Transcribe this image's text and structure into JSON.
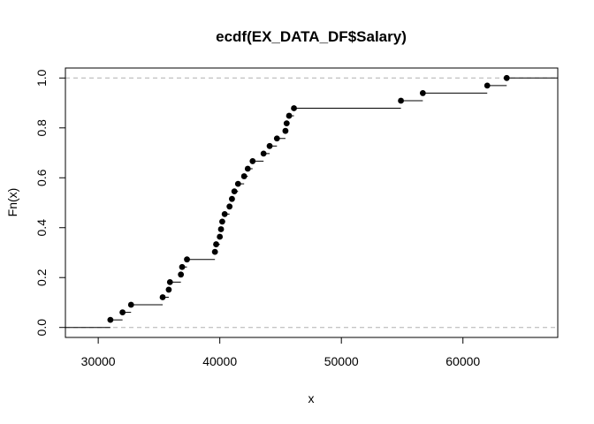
{
  "chart_data": {
    "type": "scatter",
    "subtype": "ecdf-step",
    "title": "ecdf(EX_DATA_DF$Salary)",
    "xlabel": "x",
    "ylabel": "Fn(x)",
    "xlim": [
      27300,
      67800
    ],
    "ylim": [
      -0.04,
      1.04
    ],
    "x_ticks": [
      30000,
      40000,
      50000,
      60000
    ],
    "x_tick_labels": [
      "30000",
      "40000",
      "50000",
      "60000"
    ],
    "y_ticks": [
      0.0,
      0.2,
      0.4,
      0.6,
      0.8,
      1.0
    ],
    "y_tick_labels": [
      "0.0",
      "0.2",
      "0.4",
      "0.6",
      "0.8",
      "1.0"
    ],
    "reference_lines_y": [
      0,
      1
    ],
    "reference_line_style": "dashed grey",
    "point_color": "#000000",
    "x": [
      31000,
      32000,
      32700,
      35300,
      35800,
      35900,
      36800,
      36900,
      37300,
      39600,
      39700,
      40000,
      40100,
      40200,
      40400,
      40800,
      41000,
      41200,
      41500,
      42000,
      42300,
      42700,
      43600,
      44100,
      44700,
      45400,
      45500,
      45700,
      46100,
      54900,
      56700,
      62000,
      63600
    ],
    "y": [
      0.0303,
      0.0606,
      0.0909,
      0.1212,
      0.1515,
      0.1818,
      0.2121,
      0.2424,
      0.2727,
      0.303,
      0.3333,
      0.3636,
      0.3939,
      0.4242,
      0.4545,
      0.4848,
      0.5152,
      0.5455,
      0.5758,
      0.6061,
      0.6364,
      0.6667,
      0.697,
      0.7273,
      0.7576,
      0.7879,
      0.8182,
      0.8485,
      0.8788,
      0.9091,
      0.9394,
      0.9697,
      1.0
    ]
  }
}
